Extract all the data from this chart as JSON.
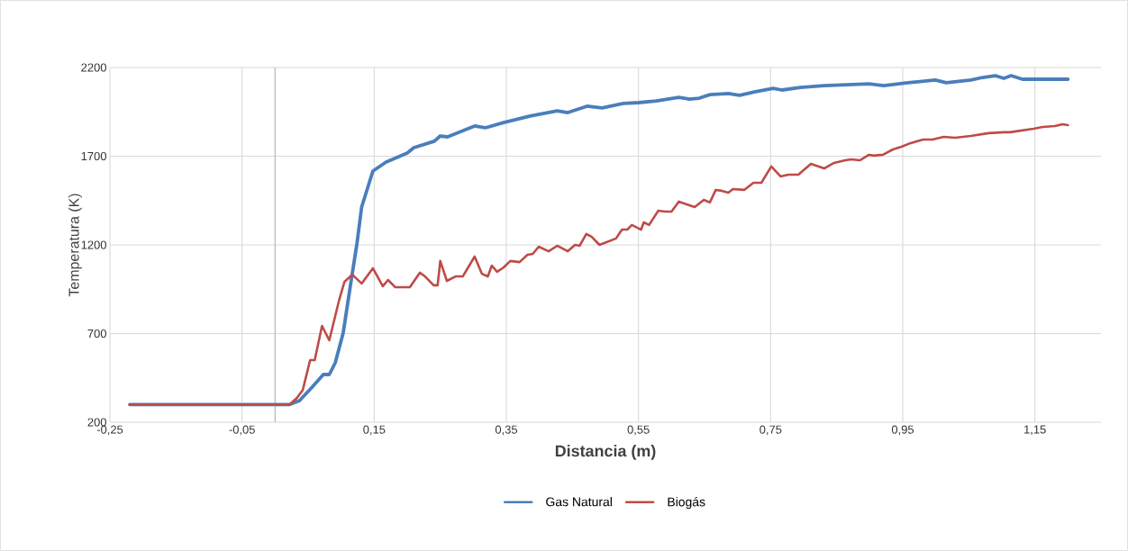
{
  "chart_data": {
    "type": "line",
    "xlabel": "Distancia (m)",
    "ylabel": "Temperatura (K)",
    "xlim": [
      -0.25,
      1.25
    ],
    "ylim": [
      200,
      2200
    ],
    "xticks": [
      {
        "value": -0.25,
        "label": "-0,25"
      },
      {
        "value": -0.05,
        "label": "-0,05"
      },
      {
        "value": 0.15,
        "label": "0,15"
      },
      {
        "value": 0.35,
        "label": "0,35"
      },
      {
        "value": 0.55,
        "label": "0,55"
      },
      {
        "value": 0.75,
        "label": "0,75"
      },
      {
        "value": 0.95,
        "label": "0,95"
      },
      {
        "value": 1.15,
        "label": "1,15"
      }
    ],
    "yticks": [
      200,
      700,
      1200,
      1700,
      2200
    ],
    "grid": true,
    "legend": "bottom",
    "marker": "none",
    "line_style": "solid",
    "ref_lines": [
      {
        "axis": "x",
        "value": 0,
        "color": "#bfbfbf"
      }
    ],
    "series": [
      {
        "name": "Gas Natural",
        "color": "#4a7ebb",
        "x": [
          -0.22,
          0.022,
          0.037,
          0.056,
          0.073,
          0.082,
          0.091,
          0.103,
          0.114,
          0.124,
          0.131,
          0.148,
          0.168,
          0.2,
          0.21,
          0.241,
          0.25,
          0.261,
          0.302,
          0.318,
          0.346,
          0.386,
          0.427,
          0.443,
          0.472,
          0.495,
          0.527,
          0.55,
          0.577,
          0.611,
          0.627,
          0.642,
          0.658,
          0.686,
          0.703,
          0.727,
          0.754,
          0.767,
          0.795,
          0.831,
          0.899,
          0.921,
          0.958,
          0.999,
          1.016,
          1.053,
          1.071,
          1.09,
          1.103,
          1.114,
          1.131,
          1.2
        ],
        "values": [
          300,
          300,
          322,
          398,
          469,
          469,
          535,
          702,
          971,
          1210,
          1413,
          1616,
          1667,
          1718,
          1748,
          1784,
          1814,
          1809,
          1870,
          1860,
          1890,
          1926,
          1956,
          1946,
          1982,
          1972,
          1997,
          2002,
          2012,
          2032,
          2022,
          2027,
          2047,
          2053,
          2043,
          2063,
          2083,
          2073,
          2088,
          2098,
          2108,
          2098,
          2114,
          2129,
          2114,
          2129,
          2144,
          2154,
          2139,
          2154,
          2134,
          2134
        ]
      },
      {
        "name": "Biogás",
        "color": "#be4b48",
        "x": [
          -0.22,
          0.022,
          0.033,
          0.042,
          0.053,
          0.06,
          0.071,
          0.082,
          0.097,
          0.105,
          0.117,
          0.131,
          0.148,
          0.163,
          0.171,
          0.182,
          0.204,
          0.219,
          0.227,
          0.24,
          0.246,
          0.25,
          0.26,
          0.273,
          0.284,
          0.302,
          0.313,
          0.322,
          0.328,
          0.336,
          0.346,
          0.356,
          0.37,
          0.382,
          0.39,
          0.399,
          0.414,
          0.427,
          0.443,
          0.454,
          0.461,
          0.471,
          0.479,
          0.491,
          0.516,
          0.525,
          0.533,
          0.54,
          0.554,
          0.558,
          0.566,
          0.58,
          0.59,
          0.6,
          0.611,
          0.627,
          0.635,
          0.649,
          0.658,
          0.667,
          0.676,
          0.686,
          0.693,
          0.71,
          0.724,
          0.736,
          0.751,
          0.765,
          0.777,
          0.792,
          0.811,
          0.831,
          0.846,
          0.863,
          0.872,
          0.885,
          0.899,
          0.906,
          0.92,
          0.935,
          0.948,
          0.962,
          0.981,
          0.995,
          1.012,
          1.029,
          1.053,
          1.08,
          1.103,
          1.112,
          1.148,
          1.162,
          1.18,
          1.192,
          1.2
        ],
        "values": [
          300,
          300,
          337,
          383,
          550,
          550,
          743,
          662,
          890,
          992,
          1032,
          982,
          1068,
          967,
          1002,
          961,
          961,
          1043,
          1022,
          972,
          972,
          1109,
          997,
          1022,
          1022,
          1134,
          1037,
          1022,
          1083,
          1048,
          1073,
          1109,
          1103,
          1144,
          1149,
          1190,
          1164,
          1195,
          1164,
          1200,
          1195,
          1261,
          1246,
          1200,
          1236,
          1286,
          1286,
          1312,
          1286,
          1327,
          1312,
          1393,
          1388,
          1388,
          1444,
          1423,
          1413,
          1454,
          1439,
          1510,
          1505,
          1494,
          1515,
          1510,
          1550,
          1550,
          1642,
          1586,
          1596,
          1596,
          1657,
          1631,
          1662,
          1677,
          1682,
          1677,
          1708,
          1703,
          1708,
          1738,
          1753,
          1774,
          1794,
          1794,
          1809,
          1804,
          1814,
          1830,
          1835,
          1835,
          1855,
          1865,
          1870,
          1880,
          1875
        ]
      }
    ]
  }
}
